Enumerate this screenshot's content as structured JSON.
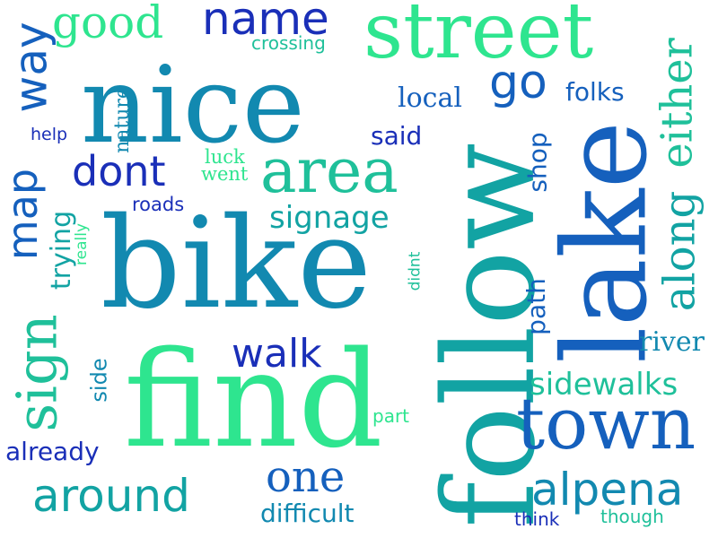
{
  "words": [
    "nice",
    "bike",
    "find",
    "follow",
    "lake",
    "street",
    "town",
    "area",
    "name",
    "good",
    "way",
    "go",
    "either",
    "along",
    "map",
    "sign",
    "around",
    "alpena",
    "one",
    "walk",
    "dont",
    "signage",
    "sidewalks",
    "river",
    "path",
    "shop",
    "folks",
    "local",
    "said",
    "help",
    "nature",
    "luck",
    "went",
    "roads",
    "crossing",
    "trying",
    "really",
    "didnt",
    "side",
    "part",
    "already",
    "difficult",
    "think",
    "though"
  ],
  "palette": {
    "dark_blue": "#1a2fb8",
    "blue": "#1560bd",
    "teal_blue": "#1289b0",
    "teal": "#12a3a3",
    "green_teal": "#1fc09a",
    "green": "#2ee58f"
  }
}
